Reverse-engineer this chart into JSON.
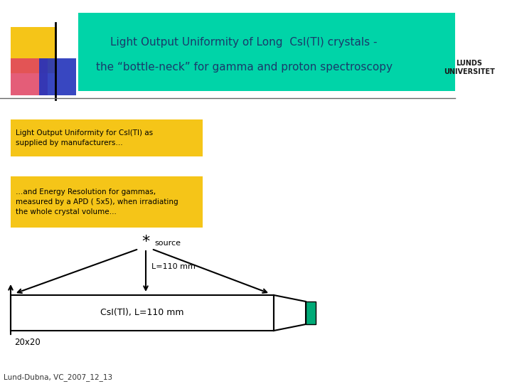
{
  "bg_color": "#ffffff",
  "header_bg": "#00d4a8",
  "header_text_line1": "Light Output Uniformity of Long  CsI(Tl) crystals -",
  "header_text_line2": "the “bottle-neck” for gamma and proton spectroscopy",
  "header_text_color": "#1a3a6b",
  "box1_text": "Light Output Uniformity for CsI(Tl) as\nsupplied by manufacturers…",
  "box1_color": "#f5c518",
  "box2_text": "…and Energy Resolution for gammas,\nmeasured by a APD ( 5x5), when irradiating\nthe whole crystal volume…",
  "box2_color": "#f5c518",
  "crystal_label": "CsI(Tl), L=110 mm",
  "arrow_label": "L=110 mm",
  "dim_label": "20x20",
  "footer": "Lund-Dubna, VC_2007_12_13",
  "apd_color": "#00aa77"
}
